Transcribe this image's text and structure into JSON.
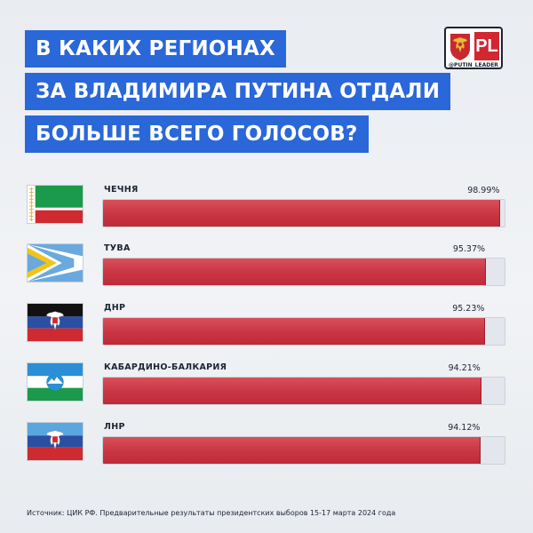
{
  "title": {
    "line1": "В КАКИХ РЕГИОНАХ",
    "line2": "ЗА ВЛАДИМИРА ПУТИНА ОТДАЛИ",
    "line3": "БОЛЬШЕ ВСЕГО ГОЛОСОВ?"
  },
  "logo": {
    "text": "PL",
    "handle": "@PUTIN_LEADER",
    "icon": "russian-coat-of-arms-icon",
    "colors": {
      "accent": "#d22630",
      "border": "#1d2433"
    }
  },
  "colors": {
    "title_bg": "#2a67d8",
    "bar": "#c93542",
    "track": "#e3e6ec",
    "text": "#1d2433"
  },
  "chart_data": {
    "type": "bar",
    "orientation": "horizontal",
    "categories": [
      "ЧЕЧНЯ",
      "ТУВА",
      "ДНР",
      "КАБАРДИНО-БАЛКАРИЯ",
      "ЛНР"
    ],
    "values": [
      98.99,
      95.37,
      95.23,
      94.21,
      94.12
    ],
    "value_labels": [
      "98.99%",
      "95.37%",
      "95.23%",
      "94.21%",
      "94.12%"
    ],
    "flags": [
      "chechnya-flag-icon",
      "tuva-flag-icon",
      "dnr-flag-icon",
      "kabardino-balkaria-flag-icon",
      "lnr-flag-icon"
    ],
    "xlim": [
      0,
      100
    ],
    "grid": false
  },
  "source": "Источник: ЦИК РФ. Предварительные результаты президентских выборов 15-17 марта 2024 года"
}
